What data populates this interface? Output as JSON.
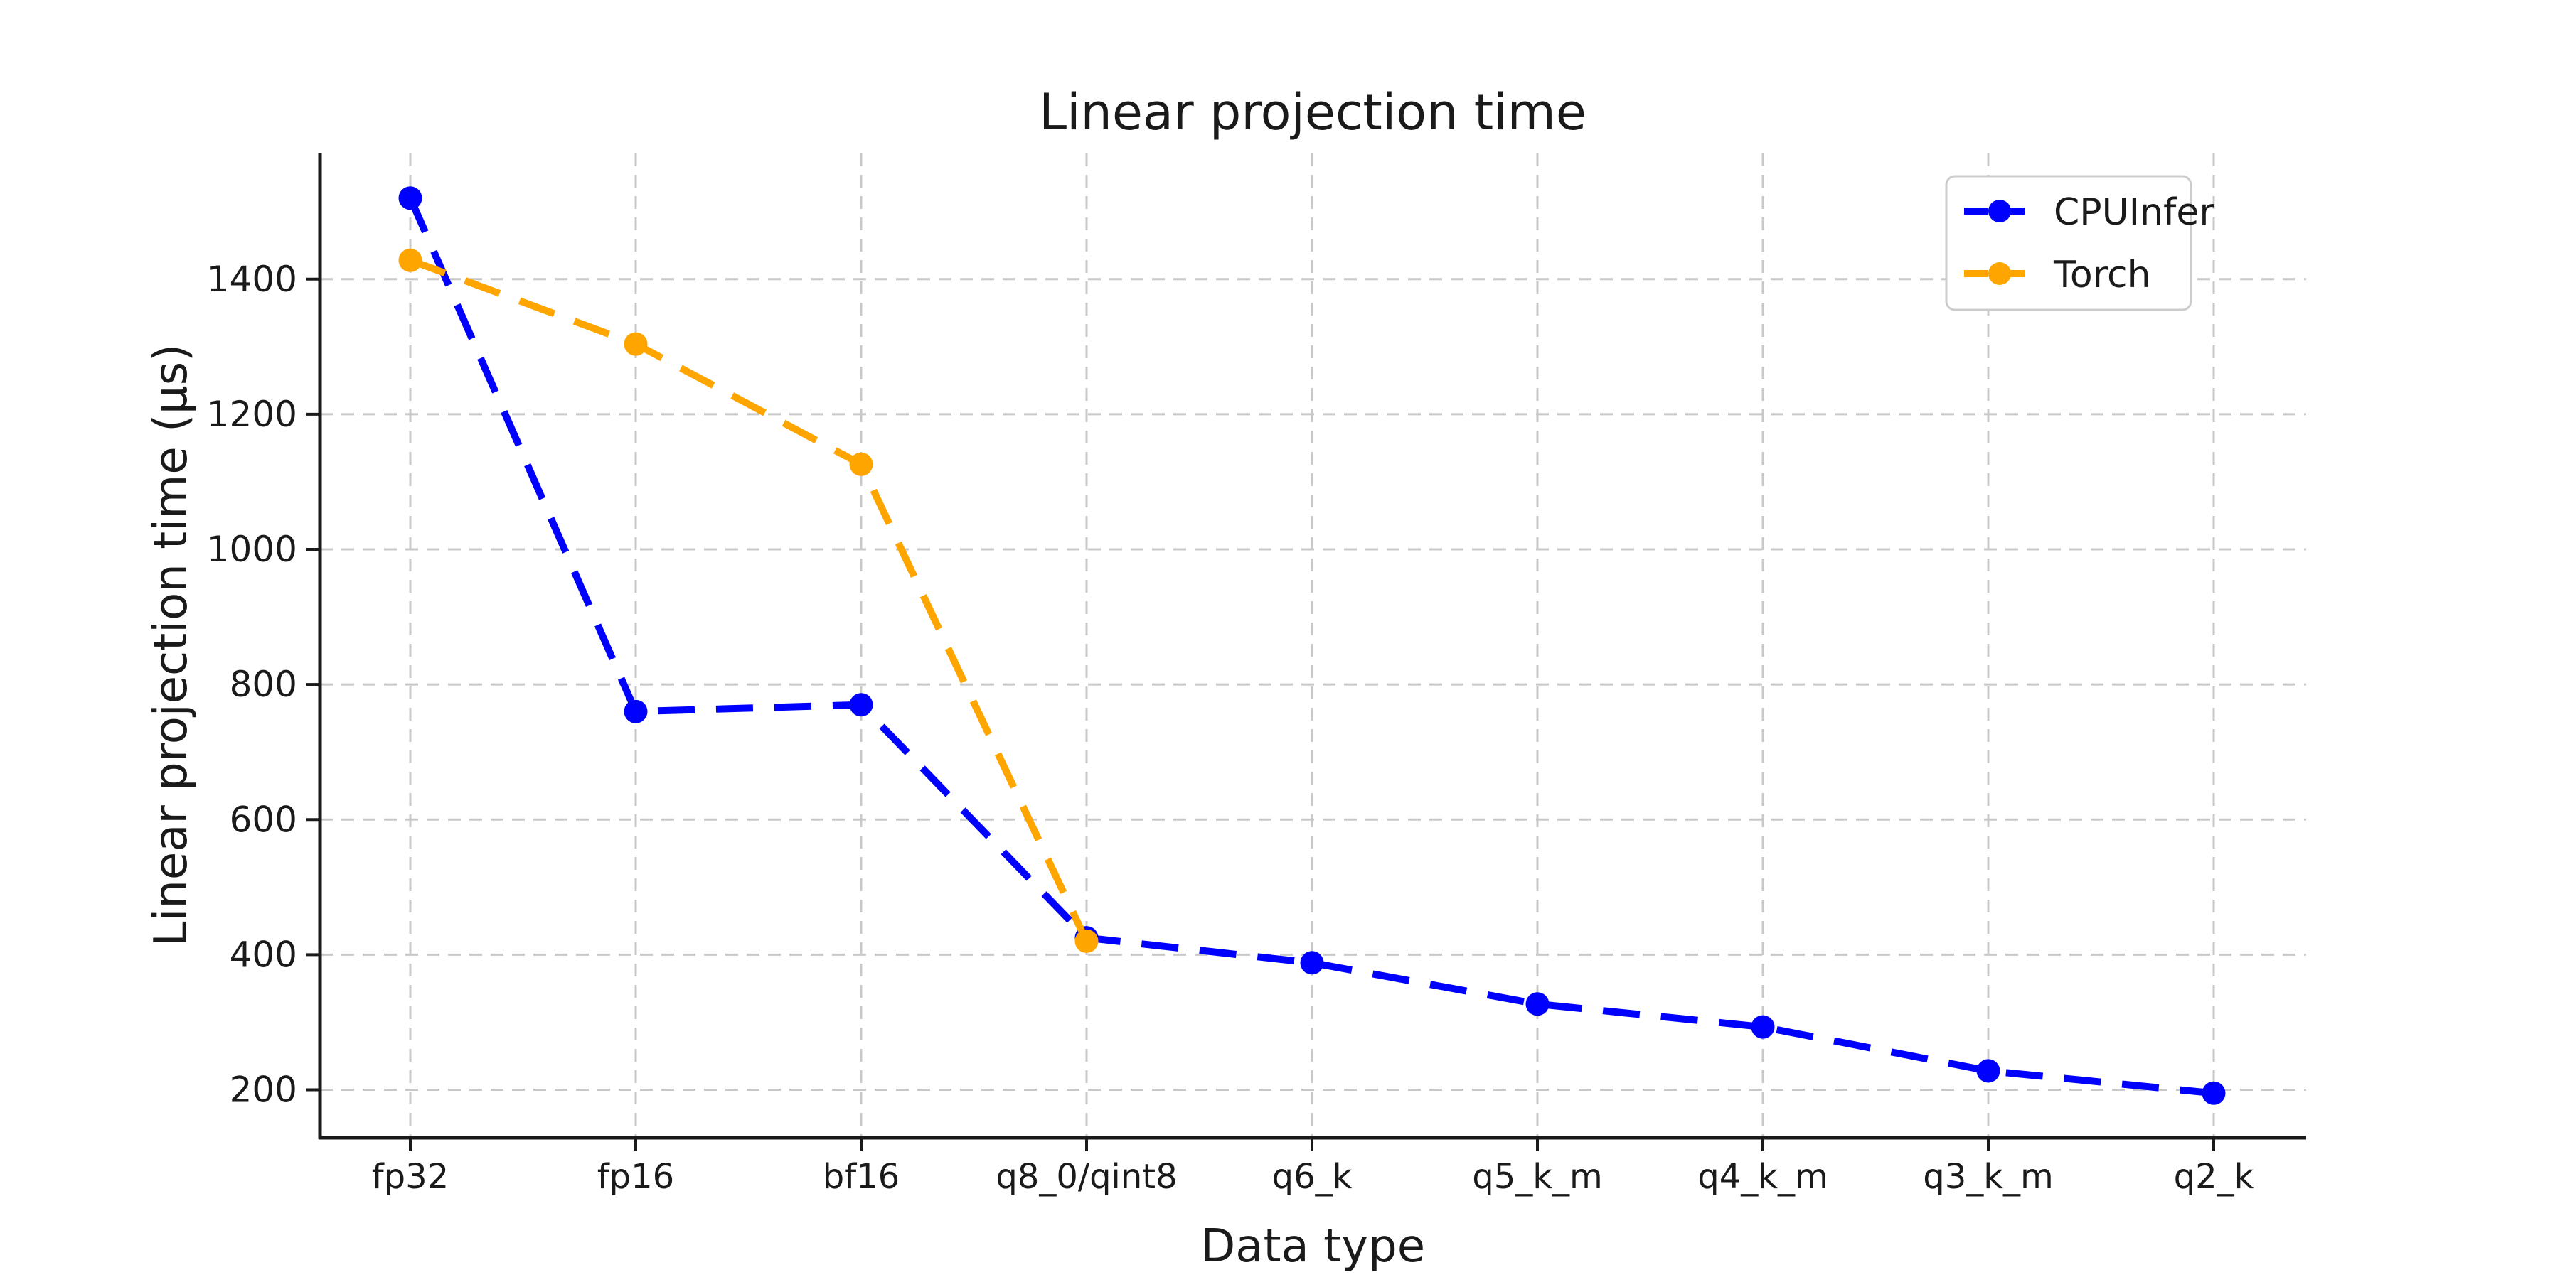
{
  "chart_data": {
    "type": "line",
    "title": "Linear projection time",
    "xlabel": "Data type",
    "ylabel": "Linear projection time (μs)",
    "categories": [
      "fp32",
      "fp16",
      "bf16",
      "q8_0/qint8",
      "q6_k",
      "q5_k_m",
      "q4_k_m",
      "q3_k_m",
      "q2_k"
    ],
    "series": [
      {
        "name": "CPUInfer",
        "color": "#0000ff",
        "values": [
          1520,
          760,
          770,
          425,
          388,
          327,
          293,
          228,
          195
        ]
      },
      {
        "name": "Torch",
        "color": "#ffa500",
        "values": [
          1428,
          1304,
          1126,
          420,
          null,
          null,
          null,
          null,
          null
        ]
      }
    ],
    "yticks": [
      200,
      400,
      600,
      800,
      1000,
      1200,
      1400
    ],
    "ylim": [
      129,
      1586
    ],
    "grid": true,
    "grid_style": "dashed",
    "line_style": "dashed",
    "marker": "circle",
    "legend_position": "upper right",
    "colors": {
      "grid": "#c8c8c8",
      "text": "#1a1a1a",
      "spine": "#1a1a1a"
    }
  }
}
